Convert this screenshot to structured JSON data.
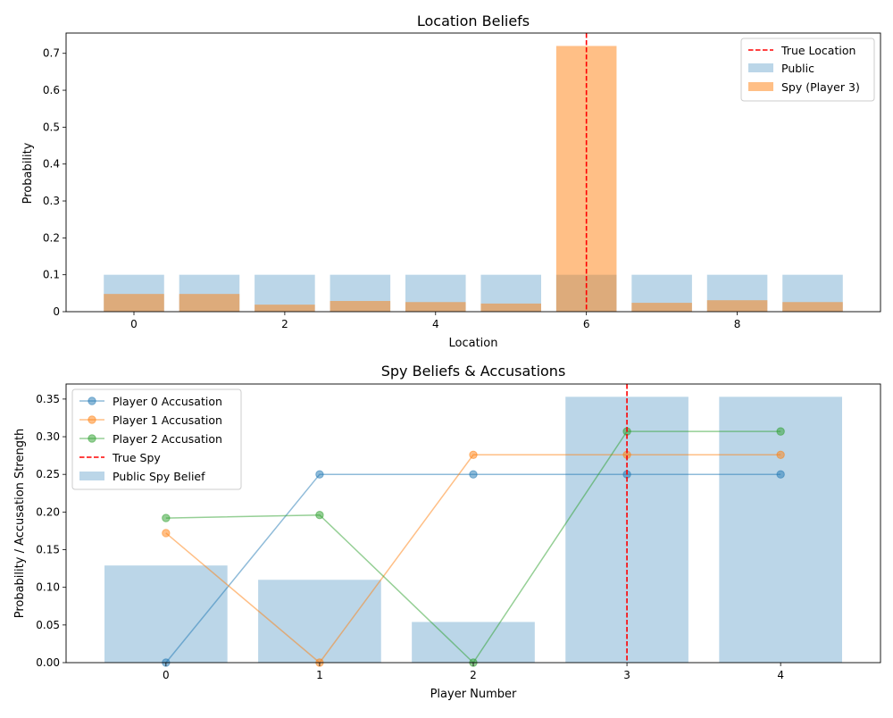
{
  "chart_data": [
    {
      "type": "bar",
      "title": "Location Beliefs",
      "xlabel": "Location",
      "ylabel": "Probability",
      "xlim": [
        -0.9,
        9.9
      ],
      "ylim": [
        0,
        0.755
      ],
      "xticks": [
        0,
        2,
        4,
        6,
        8
      ],
      "yticks": [
        0.0,
        0.1,
        0.2,
        0.3,
        0.4,
        0.5,
        0.6,
        0.7
      ],
      "categories": [
        0,
        1,
        2,
        3,
        4,
        5,
        6,
        7,
        8,
        9
      ],
      "series": [
        {
          "name": "Public",
          "color": "#1f77b4",
          "alpha": 0.3,
          "values": [
            0.1,
            0.1,
            0.1,
            0.1,
            0.1,
            0.1,
            0.1,
            0.1,
            0.1,
            0.1
          ]
        },
        {
          "name": "Spy (Player 3)",
          "color": "#ff7f0e",
          "alpha": 0.5,
          "values": [
            0.048,
            0.048,
            0.019,
            0.029,
            0.026,
            0.022,
            0.72,
            0.024,
            0.031,
            0.026
          ]
        }
      ],
      "vline": {
        "name": "True Location",
        "x": 6,
        "color": "#ff0000",
        "style": "dashed"
      },
      "legend": {
        "placement": "top-right",
        "entries": [
          "True Location",
          "Public",
          "Spy (Player 3)"
        ]
      },
      "grid": false
    },
    {
      "type": "bar+line",
      "title": "Spy Beliefs & Accusations",
      "xlabel": "Player Number",
      "ylabel": "Probability / Accusation Strength",
      "xlim": [
        -0.65,
        4.65
      ],
      "ylim": [
        0,
        0.37
      ],
      "xticks": [
        0,
        1,
        2,
        3,
        4
      ],
      "yticks": [
        "0.00",
        "0.05",
        "0.10",
        "0.15",
        "0.20",
        "0.25",
        "0.30",
        "0.35"
      ],
      "categories": [
        0,
        1,
        2,
        3,
        4
      ],
      "bars": {
        "name": "Public Spy Belief",
        "color": "#1f77b4",
        "alpha": 0.3,
        "values": [
          0.129,
          0.11,
          0.054,
          0.353,
          0.353
        ]
      },
      "series": [
        {
          "name": "Player 0 Accusation",
          "color": "#1f77b4",
          "values": [
            0.0,
            0.25,
            0.25,
            0.25,
            0.25
          ]
        },
        {
          "name": "Player 1 Accusation",
          "color": "#ff7f0e",
          "values": [
            0.172,
            0.0,
            0.276,
            0.276,
            0.276
          ]
        },
        {
          "name": "Player 2 Accusation",
          "color": "#2ca02c",
          "values": [
            0.192,
            0.196,
            0.0,
            0.307,
            0.307
          ]
        }
      ],
      "vline": {
        "name": "True Spy",
        "x": 3,
        "color": "#ff0000",
        "style": "dashed"
      },
      "legend": {
        "placement": "top-left",
        "entries": [
          "Player 0 Accusation",
          "Player 1 Accusation",
          "Player 2 Accusation",
          "True Spy",
          "Public Spy Belief"
        ]
      },
      "grid": false
    }
  ]
}
